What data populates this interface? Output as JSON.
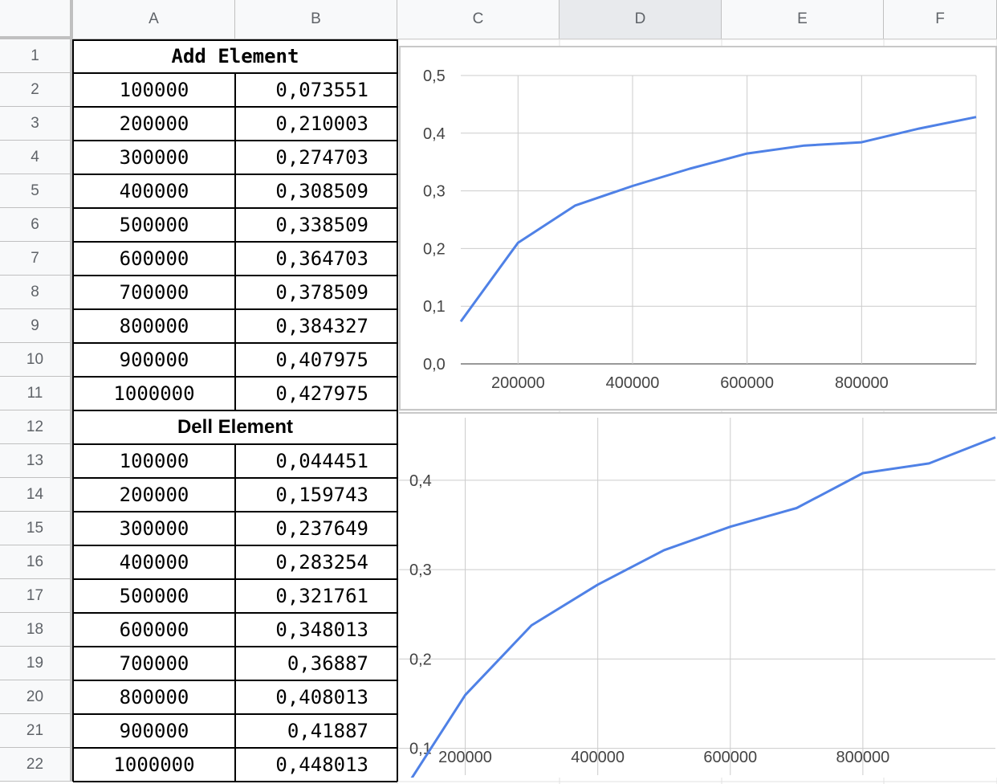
{
  "columns": [
    "A",
    "B",
    "C",
    "D",
    "E",
    "F"
  ],
  "selected_column": "D",
  "rows": [
    "1",
    "2",
    "3",
    "4",
    "5",
    "6",
    "7",
    "8",
    "9",
    "10",
    "11",
    "12",
    "13",
    "14",
    "15",
    "16",
    "17",
    "18",
    "19",
    "20",
    "21",
    "22"
  ],
  "table": {
    "add_title": "Add Element",
    "add_rows": [
      [
        "100000",
        "0,073551"
      ],
      [
        "200000",
        "0,210003"
      ],
      [
        "300000",
        "0,274703"
      ],
      [
        "400000",
        "0,308509"
      ],
      [
        "500000",
        "0,338509"
      ],
      [
        "600000",
        "0,364703"
      ],
      [
        "700000",
        "0,378509"
      ],
      [
        "800000",
        "0,384327"
      ],
      [
        "900000",
        "0,407975"
      ],
      [
        "1000000",
        "0,427975"
      ]
    ],
    "dell_title": "Dell Element",
    "dell_rows": [
      [
        "100000",
        "0,044451"
      ],
      [
        "200000",
        "0,159743"
      ],
      [
        "300000",
        "0,237649"
      ],
      [
        "400000",
        "0,283254"
      ],
      [
        "500000",
        "0,321761"
      ],
      [
        "600000",
        "0,348013"
      ],
      [
        "700000",
        "0,36887"
      ],
      [
        "800000",
        "0,408013"
      ],
      [
        "900000",
        "0,41887"
      ],
      [
        "1000000",
        "0,448013"
      ]
    ]
  },
  "colors": {
    "line": "#4f81e6",
    "grid": "#cccccc",
    "header_bg": "#f8f9fa"
  },
  "chart_data": [
    {
      "type": "line",
      "x": [
        100000,
        200000,
        300000,
        400000,
        500000,
        600000,
        700000,
        800000,
        900000,
        1000000
      ],
      "series": [
        {
          "values": [
            0.073551,
            0.210003,
            0.274703,
            0.308509,
            0.338509,
            0.364703,
            0.378509,
            0.384327,
            0.407975,
            0.427975
          ]
        }
      ],
      "x_ticks": [
        200000,
        400000,
        600000,
        800000
      ],
      "x_tick_labels": [
        "200000",
        "400000",
        "600000",
        "800000"
      ],
      "y_ticks": [
        0,
        0.1,
        0.2,
        0.3,
        0.4,
        0.5
      ],
      "y_tick_labels": [
        "0,0",
        "0,1",
        "0,2",
        "0,3",
        "0,4",
        "0,5"
      ],
      "xlim": [
        100000,
        1000000
      ],
      "ylim": [
        0,
        0.5
      ],
      "grid": true,
      "title": "",
      "xlabel": "",
      "ylabel": ""
    },
    {
      "type": "line",
      "x": [
        100000,
        200000,
        300000,
        400000,
        500000,
        600000,
        700000,
        800000,
        900000,
        1000000
      ],
      "series": [
        {
          "values": [
            0.044451,
            0.159743,
            0.237649,
            0.283254,
            0.321761,
            0.348013,
            0.36887,
            0.408013,
            0.41887,
            0.448013
          ]
        }
      ],
      "x_ticks": [
        200000,
        400000,
        600000,
        800000
      ],
      "x_tick_labels": [
        "200000",
        "400000",
        "600000",
        "800000"
      ],
      "y_ticks": [
        0.1,
        0.2,
        0.3,
        0.4
      ],
      "y_tick_labels": [
        "0,1",
        "0,2",
        "0,3",
        "0,4"
      ],
      "xlim": [
        100000,
        1000000
      ],
      "ylim": [
        0.07,
        0.47
      ],
      "grid": true,
      "title": "",
      "xlabel": "",
      "ylabel": ""
    }
  ]
}
